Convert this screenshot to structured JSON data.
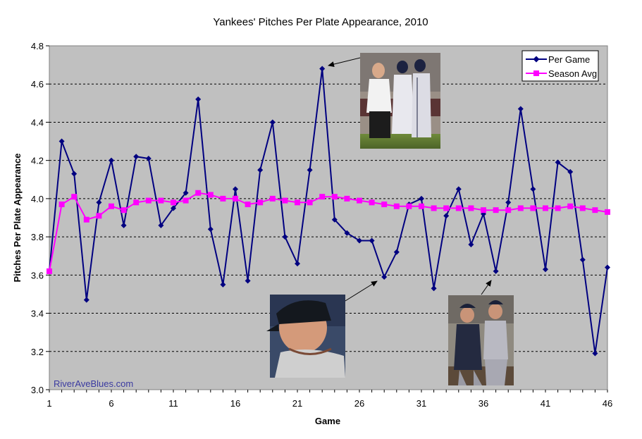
{
  "chart_data": {
    "type": "line",
    "title": "Yankees' Pitches Per Plate Appearance, 2010",
    "xlabel": "Game",
    "ylabel": "Pitches Per Plate Appearance",
    "xlim": [
      1,
      46
    ],
    "ylim": [
      3.0,
      4.8
    ],
    "x_ticks": [
      "1",
      "6",
      "11",
      "16",
      "21",
      "26",
      "31",
      "36",
      "41",
      "46"
    ],
    "y_ticks": [
      "3.0",
      "3.2",
      "3.4",
      "3.6",
      "3.8",
      "4.0",
      "4.2",
      "4.4",
      "4.6",
      "4.8"
    ],
    "grid": "horizontal dashed",
    "legend_position": "top-right",
    "watermark": "RiverAveBlues.com",
    "plot_background": "#c0c0c0",
    "series": [
      {
        "name": "Per Game",
        "color": "#000080",
        "marker": "diamond",
        "x": [
          1,
          2,
          3,
          4,
          5,
          6,
          7,
          8,
          9,
          10,
          11,
          12,
          13,
          14,
          15,
          16,
          17,
          18,
          19,
          20,
          21,
          22,
          23,
          24,
          25,
          26,
          27,
          28,
          29,
          30,
          31,
          32,
          33,
          34,
          35,
          36,
          37,
          38,
          39,
          40,
          41,
          42,
          43,
          44,
          45,
          46
        ],
        "values": [
          3.62,
          4.3,
          4.13,
          3.47,
          3.98,
          4.2,
          3.86,
          4.22,
          4.21,
          3.86,
          3.95,
          4.03,
          4.52,
          3.84,
          3.55,
          4.05,
          3.57,
          4.15,
          4.4,
          3.8,
          3.66,
          4.15,
          4.68,
          3.89,
          3.82,
          3.78,
          3.78,
          3.59,
          3.72,
          3.97,
          4.0,
          3.53,
          3.91,
          4.05,
          3.76,
          3.92,
          3.62,
          3.98,
          4.47,
          4.05,
          3.63,
          4.19,
          4.14,
          3.68,
          3.19,
          3.64
        ]
      },
      {
        "name": "Season Avg",
        "color": "#ff00ff",
        "marker": "square",
        "x": [
          1,
          2,
          3,
          4,
          5,
          6,
          7,
          8,
          9,
          10,
          11,
          12,
          13,
          14,
          15,
          16,
          17,
          18,
          19,
          20,
          21,
          22,
          23,
          24,
          25,
          26,
          27,
          28,
          29,
          30,
          31,
          32,
          33,
          34,
          35,
          36,
          37,
          38,
          39,
          40,
          41,
          42,
          43,
          44,
          45,
          46
        ],
        "values": [
          3.62,
          3.97,
          4.01,
          3.89,
          3.91,
          3.96,
          3.94,
          3.98,
          3.99,
          3.99,
          3.98,
          3.99,
          4.03,
          4.02,
          4.0,
          4.0,
          3.97,
          3.98,
          4.0,
          3.99,
          3.98,
          3.98,
          4.01,
          4.01,
          4.0,
          3.99,
          3.98,
          3.97,
          3.96,
          3.96,
          3.96,
          3.95,
          3.95,
          3.95,
          3.95,
          3.94,
          3.94,
          3.94,
          3.95,
          3.95,
          3.95,
          3.95,
          3.96,
          3.95,
          3.94,
          3.93
        ]
      }
    ],
    "annotations": [
      {
        "name": "photo-trainer-escort",
        "points_to_x": 23,
        "points_to_y": 4.68
      },
      {
        "name": "photo-batter-helmet",
        "points_to_x": 28,
        "points_to_y": 3.59
      },
      {
        "name": "photo-manager-player",
        "points_to_x": 37,
        "points_to_y": 3.62
      }
    ]
  }
}
